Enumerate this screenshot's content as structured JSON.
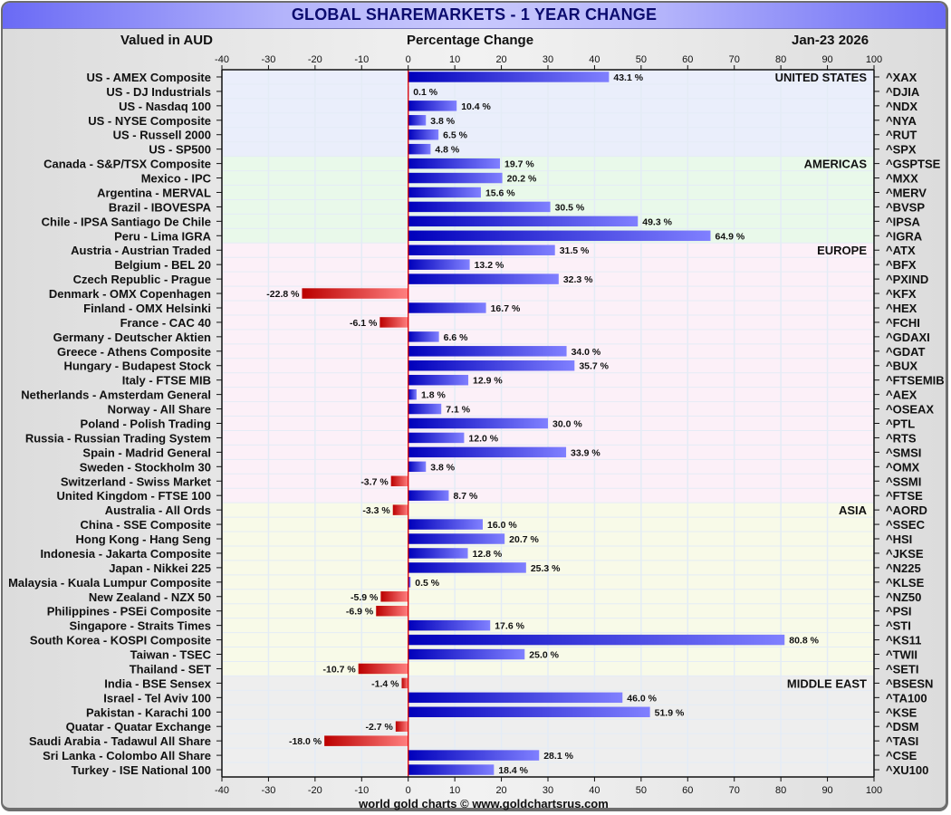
{
  "header": {
    "title": "GLOBAL SHAREMARKETS - 1 YEAR CHANGE",
    "currency_note": "Valued in AUD",
    "axis_title": "Percentage Change",
    "date": "Jan-23  2026"
  },
  "footer": {
    "credit": "world gold charts © www.goldchartsrus.com"
  },
  "colors": {
    "positive_dark": "#0000bb",
    "positive_light": "#8080ff",
    "negative_dark": "#bb0000",
    "negative_light": "#ff8080",
    "zero_line": "#dd0000",
    "band_united_states": "#eaeefb",
    "band_americas": "#e9f9ea",
    "band_europe": "#fcf0f8",
    "band_asia": "#f8fae8",
    "band_middle_east": "#eeeeee"
  },
  "chart_data": {
    "type": "bar",
    "orientation": "horizontal",
    "title": "GLOBAL SHAREMARKETS - 1 YEAR CHANGE",
    "xlabel": "Percentage Change",
    "xlim": [
      -40,
      100
    ],
    "x_ticks": [
      "-40",
      "-30",
      "-20",
      "-10",
      "0",
      "10",
      "20",
      "30",
      "40",
      "50",
      "60",
      "70",
      "80",
      "90",
      "100"
    ],
    "grid": true,
    "value_suffix": " %",
    "regions": [
      {
        "name": "UNITED STATES",
        "band": "band_united_states",
        "items": [
          {
            "label": "US - AMEX Composite",
            "ticker": "^XAX",
            "value": 43.1
          },
          {
            "label": "US - DJ Industrials",
            "ticker": "^DJIA",
            "value": 0.1
          },
          {
            "label": "US - Nasdaq 100",
            "ticker": "^NDX",
            "value": 10.4
          },
          {
            "label": "US - NYSE Composite",
            "ticker": "^NYA",
            "value": 3.8
          },
          {
            "label": "US - Russell 2000",
            "ticker": "^RUT",
            "value": 6.5
          },
          {
            "label": "US - SP500",
            "ticker": "^SPX",
            "value": 4.8
          }
        ]
      },
      {
        "name": "AMERICAS",
        "band": "band_americas",
        "items": [
          {
            "label": "Canada - S&P/TSX Composite",
            "ticker": "^GSPTSE",
            "value": 19.7
          },
          {
            "label": "Mexico - IPC",
            "ticker": "^MXX",
            "value": 20.2
          },
          {
            "label": "Argentina - MERVAL",
            "ticker": "^MERV",
            "value": 15.6
          },
          {
            "label": "Brazil - IBOVESPA",
            "ticker": "^BVSP",
            "value": 30.5
          },
          {
            "label": "Chile - IPSA Santiago De Chile",
            "ticker": "^IPSA",
            "value": 49.3
          },
          {
            "label": "Peru - Lima IGRA",
            "ticker": "^IGRA",
            "value": 64.9
          }
        ]
      },
      {
        "name": "EUROPE",
        "band": "band_europe",
        "items": [
          {
            "label": "Austria - Austrian Traded",
            "ticker": "^ATX",
            "value": 31.5
          },
          {
            "label": "Belgium - BEL 20",
            "ticker": "^BFX",
            "value": 13.2
          },
          {
            "label": "Czech Republic - Prague",
            "ticker": "^PXIND",
            "value": 32.3
          },
          {
            "label": "Denmark - OMX Copenhagen",
            "ticker": "^KFX",
            "value": -22.8
          },
          {
            "label": "Finland - OMX Helsinki",
            "ticker": "^HEX",
            "value": 16.7
          },
          {
            "label": "France - CAC 40",
            "ticker": "^FCHI",
            "value": -6.1
          },
          {
            "label": "Germany - Deutscher Aktien",
            "ticker": "^GDAXI",
            "value": 6.6
          },
          {
            "label": "Greece - Athens Composite",
            "ticker": "^GDAT",
            "value": 34.0
          },
          {
            "label": "Hungary - Budapest Stock",
            "ticker": "^BUX",
            "value": 35.7
          },
          {
            "label": "Italy - FTSE MIB",
            "ticker": "^FTSEMIB",
            "value": 12.9
          },
          {
            "label": "Netherlands - Amsterdam General",
            "ticker": "^AEX",
            "value": 1.8
          },
          {
            "label": "Norway - All Share",
            "ticker": "^OSEAX",
            "value": 7.1
          },
          {
            "label": "Poland - Polish Trading",
            "ticker": "^PTL",
            "value": 30.0
          },
          {
            "label": "Russia - Russian Trading System",
            "ticker": "^RTS",
            "value": 12.0
          },
          {
            "label": "Spain - Madrid General",
            "ticker": "^SMSI",
            "value": 33.9
          },
          {
            "label": "Sweden - Stockholm 30",
            "ticker": "^OMX",
            "value": 3.8
          },
          {
            "label": "Switzerland - Swiss Market",
            "ticker": "^SSMI",
            "value": -3.7
          },
          {
            "label": "United Kingdom - FTSE 100",
            "ticker": "^FTSE",
            "value": 8.7
          }
        ]
      },
      {
        "name": "ASIA",
        "band": "band_asia",
        "items": [
          {
            "label": "Australia - All Ords",
            "ticker": "^AORD",
            "value": -3.3
          },
          {
            "label": "China - SSE Composite",
            "ticker": "^SSEC",
            "value": 16.0
          },
          {
            "label": "Hong Kong - Hang Seng",
            "ticker": "^HSI",
            "value": 20.7
          },
          {
            "label": "Indonesia - Jakarta Composite",
            "ticker": "^JKSE",
            "value": 12.8
          },
          {
            "label": "Japan - Nikkei 225",
            "ticker": "^N225",
            "value": 25.3
          },
          {
            "label": "Malaysia - Kuala Lumpur Composite",
            "ticker": "^KLSE",
            "value": 0.5
          },
          {
            "label": "New Zealand - NZX 50",
            "ticker": "^NZ50",
            "value": -5.9
          },
          {
            "label": "Philippines - PSEi Composite",
            "ticker": "^PSI",
            "value": -6.9
          },
          {
            "label": "Singapore - Straits Times",
            "ticker": "^STI",
            "value": 17.6
          },
          {
            "label": "South Korea - KOSPI Composite",
            "ticker": "^KS11",
            "value": 80.8
          },
          {
            "label": "Taiwan - TSEC",
            "ticker": "^TWII",
            "value": 25.0
          },
          {
            "label": "Thailand - SET",
            "ticker": "^SETI",
            "value": -10.7
          }
        ]
      },
      {
        "name": "MIDDLE EAST",
        "band": "band_middle_east",
        "items": [
          {
            "label": "India - BSE Sensex",
            "ticker": "^BSESN",
            "value": -1.4
          },
          {
            "label": "Israel - Tel Aviv 100",
            "ticker": "^TA100",
            "value": 46.0
          },
          {
            "label": "Pakistan - Karachi 100",
            "ticker": "^KSE",
            "value": 51.9
          },
          {
            "label": "Quatar - Quatar Exchange",
            "ticker": "^DSM",
            "value": -2.7
          },
          {
            "label": "Saudi Arabia - Tadawul All Share",
            "ticker": "^TASI",
            "value": -18.0
          },
          {
            "label": "Sri Lanka - Colombo All Share",
            "ticker": "^CSE",
            "value": 28.1
          },
          {
            "label": "Turkey - ISE National 100",
            "ticker": "^XU100",
            "value": 18.4
          }
        ]
      }
    ]
  }
}
